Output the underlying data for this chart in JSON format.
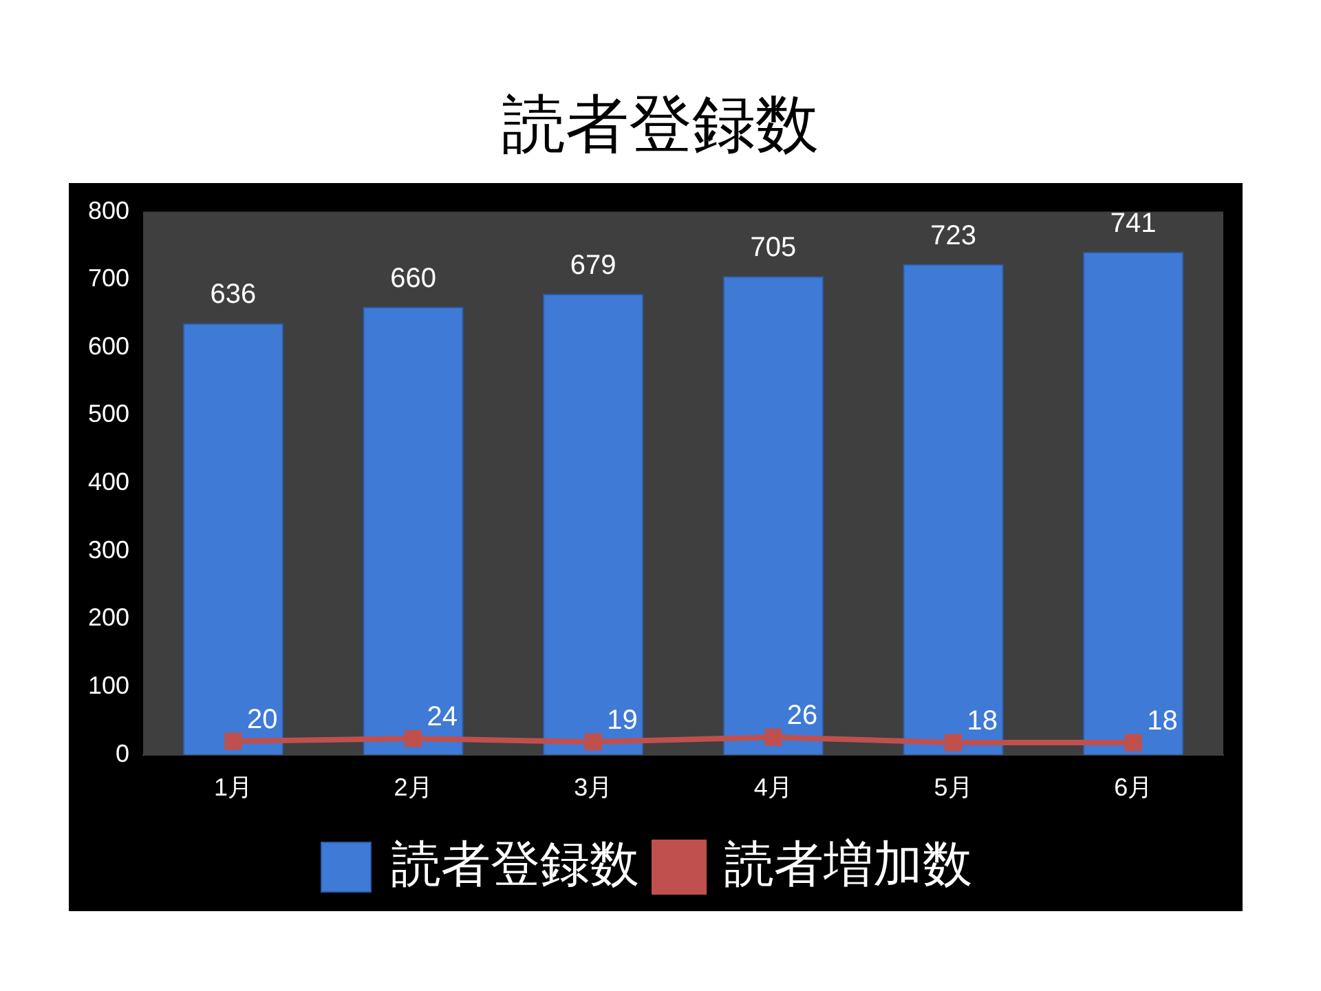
{
  "chart_data": {
    "type": "bar",
    "title": "読者登録数",
    "categories": [
      "1月",
      "2月",
      "3月",
      "4月",
      "5月",
      "6月"
    ],
    "series": [
      {
        "name": "読者登録数",
        "color": "#3f7ad6",
        "values": [
          636,
          660,
          679,
          705,
          723,
          741
        ]
      },
      {
        "name": "読者増加数",
        "type": "line",
        "color": "#c0504d",
        "values": [
          20,
          24,
          19,
          26,
          18,
          18
        ]
      }
    ],
    "ylim": [
      0,
      800
    ],
    "yticks": [
      0,
      100,
      200,
      300,
      400,
      500,
      600,
      700,
      800
    ],
    "grid": false,
    "legend": "bottom",
    "marker": "square",
    "data_labels": true
  }
}
